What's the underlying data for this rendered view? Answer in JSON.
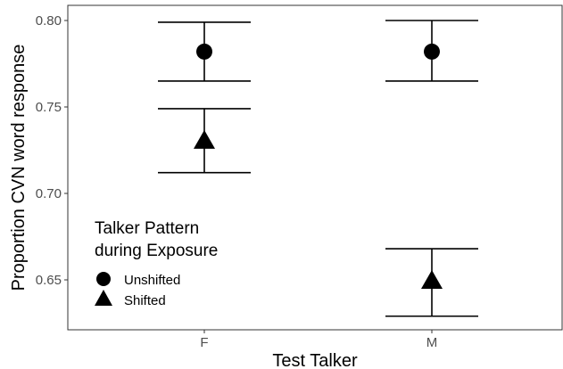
{
  "chart_data": {
    "type": "scatter",
    "xlabel": "Test Talker",
    "ylabel": "Proportion CVN word response",
    "categories": [
      "F",
      "M"
    ],
    "ylim": [
      0.625,
      0.805
    ],
    "yticks": [
      0.65,
      0.7,
      0.75,
      0.8
    ],
    "ytick_labels": [
      "0.65",
      "0.70",
      "0.75",
      "0.80"
    ],
    "grid": false,
    "legend": {
      "title_line1": "Talker Pattern",
      "title_line2": "during Exposure",
      "placement": "bottom-left"
    },
    "series": [
      {
        "name": "Unshifted",
        "marker": "circle",
        "points": [
          {
            "x": "F",
            "y": 0.782,
            "ymin": 0.765,
            "ymax": 0.799
          },
          {
            "x": "M",
            "y": 0.782,
            "ymin": 0.765,
            "ymax": 0.8
          }
        ]
      },
      {
        "name": "Shifted",
        "marker": "triangle",
        "points": [
          {
            "x": "F",
            "y": 0.731,
            "ymin": 0.712,
            "ymax": 0.749
          },
          {
            "x": "M",
            "y": 0.65,
            "ymin": 0.629,
            "ymax": 0.668
          }
        ]
      }
    ]
  }
}
